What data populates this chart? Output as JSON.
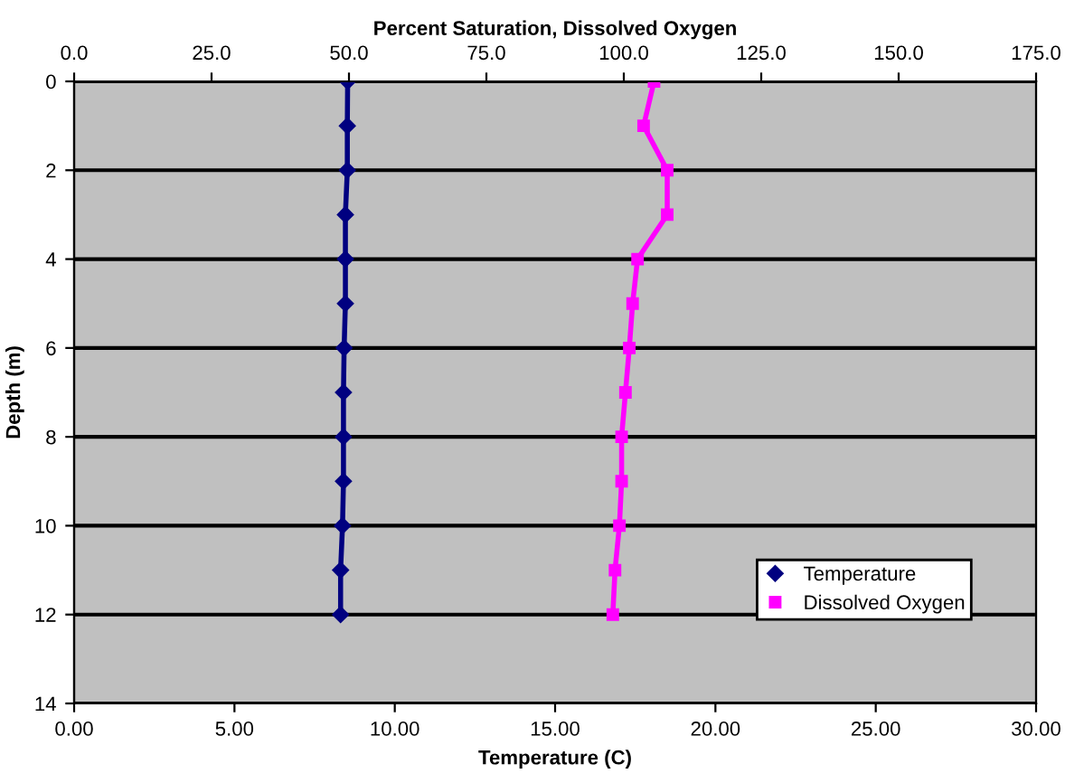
{
  "chart_data": {
    "type": "line",
    "xlabel": "Temperature (C)",
    "x2label": "Percent Saturation, Dissolved Oxygen",
    "ylabel": "Depth (m)",
    "orientation": "horizontal",
    "line_style": "solid",
    "grid": "y",
    "legend": "bottom right",
    "xlim": [
      0,
      30
    ],
    "xticks": [
      {
        "value": 0,
        "label": "0.00"
      },
      {
        "value": 5,
        "label": "5.00"
      },
      {
        "value": 10,
        "label": "10.00"
      },
      {
        "value": 15,
        "label": "15.00"
      },
      {
        "value": 20,
        "label": "20.00"
      },
      {
        "value": 25,
        "label": "25.00"
      },
      {
        "value": 30,
        "label": "30.00"
      }
    ],
    "x2lim": [
      0,
      175
    ],
    "x2ticks": [
      {
        "value": 0,
        "label": "0.0"
      },
      {
        "value": 25,
        "label": "25.0"
      },
      {
        "value": 50,
        "label": "50.0"
      },
      {
        "value": 75,
        "label": "75.0"
      },
      {
        "value": 100,
        "label": "100.0"
      },
      {
        "value": 125,
        "label": "125.0"
      },
      {
        "value": 150,
        "label": "150.0"
      },
      {
        "value": 175,
        "label": "175.0"
      }
    ],
    "ylim": [
      14,
      0
    ],
    "yticks": [
      0,
      2,
      4,
      6,
      8,
      10,
      12,
      14
    ],
    "series": [
      {
        "name": "Temperature",
        "color": "#000080",
        "marker": "diamond",
        "x": [
          0,
          1,
          2,
          3,
          4,
          5,
          6,
          7,
          8,
          9,
          10,
          11,
          12
        ],
        "values": [
          8.53,
          8.52,
          8.52,
          8.46,
          8.46,
          8.46,
          8.42,
          8.4,
          8.4,
          8.4,
          8.37,
          8.31,
          8.31
        ]
      },
      {
        "name": "Dissolved Oxygen",
        "color": "#ff00ff",
        "marker": "square",
        "axis": "x2",
        "x": [
          0,
          1,
          2,
          3,
          4,
          5,
          6,
          7,
          8,
          9,
          10,
          11,
          12
        ],
        "values": [
          105.5,
          103.6,
          107.9,
          107.9,
          102.5,
          101.6,
          101.0,
          100.3,
          99.6,
          99.6,
          99.2,
          98.4,
          98.0
        ]
      }
    ]
  }
}
